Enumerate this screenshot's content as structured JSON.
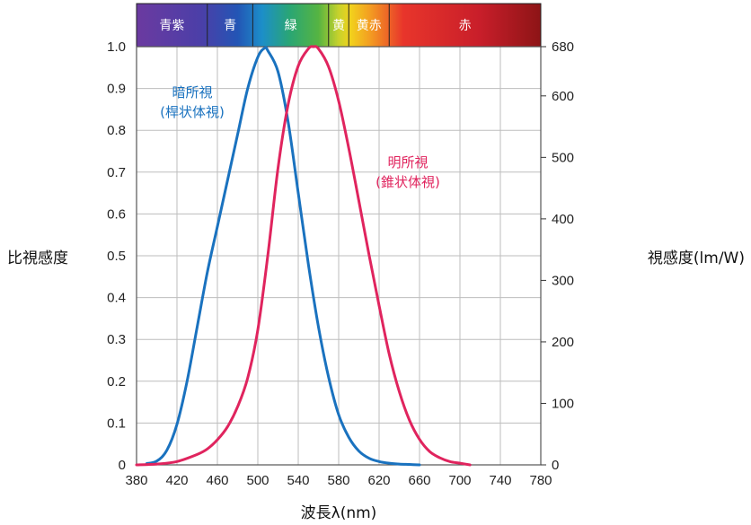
{
  "chart_data": {
    "type": "line",
    "title": "",
    "xlabel": "波長λ(nm)",
    "ylabel_left": "比視感度",
    "ylabel_right": "視感度(lm/W)",
    "xlim": [
      380,
      780
    ],
    "x_ticks": [
      "380",
      "420",
      "460",
      "500",
      "540",
      "580",
      "620",
      "660",
      "700",
      "740",
      "780"
    ],
    "ylim": [
      0,
      1.0
    ],
    "y_ticks_left": [
      "0",
      "0.1",
      "0.2",
      "0.3",
      "0.4",
      "0.5",
      "0.6",
      "0.7",
      "0.8",
      "0.9",
      "1.0"
    ],
    "y2lim": [
      0,
      680
    ],
    "y_ticks_right": [
      "0",
      "100",
      "200",
      "300",
      "400",
      "500",
      "600",
      "680"
    ],
    "grid": true,
    "color_bands": [
      {
        "label": "青紫",
        "from": 380,
        "to": 450
      },
      {
        "label": "青",
        "from": 450,
        "to": 495
      },
      {
        "label": "緑",
        "from": 495,
        "to": 570
      },
      {
        "label": "黄",
        "from": 570,
        "to": 590
      },
      {
        "label": "黄赤",
        "from": 590,
        "to": 630
      },
      {
        "label": "赤",
        "from": 630,
        "to": 780
      }
    ],
    "series": [
      {
        "name": "暗所視",
        "sub": "(桿状体視)",
        "color": "#1a72bf",
        "x": [
          390,
          400,
          410,
          420,
          430,
          440,
          450,
          460,
          470,
          480,
          490,
          500,
          507,
          510,
          520,
          530,
          540,
          550,
          560,
          570,
          580,
          590,
          600,
          610,
          620,
          630,
          640,
          650,
          660
        ],
        "y": [
          0.003,
          0.009,
          0.035,
          0.097,
          0.2,
          0.33,
          0.46,
          0.57,
          0.68,
          0.79,
          0.9,
          0.975,
          0.997,
          0.99,
          0.94,
          0.82,
          0.65,
          0.48,
          0.33,
          0.21,
          0.12,
          0.066,
          0.033,
          0.016,
          0.008,
          0.004,
          0.002,
          0.001,
          0.0
        ]
      },
      {
        "name": "明所視",
        "sub": "(錐状体視)",
        "color": "#e0245e",
        "x": [
          380,
          400,
          420,
          440,
          450,
          460,
          470,
          480,
          490,
          500,
          510,
          520,
          530,
          540,
          550,
          555,
          560,
          570,
          580,
          590,
          600,
          610,
          620,
          630,
          640,
          650,
          660,
          670,
          680,
          690,
          700,
          710
        ],
        "y": [
          0.0,
          0.002,
          0.008,
          0.025,
          0.038,
          0.06,
          0.091,
          0.139,
          0.208,
          0.323,
          0.503,
          0.71,
          0.862,
          0.954,
          0.995,
          1.0,
          0.995,
          0.952,
          0.87,
          0.757,
          0.631,
          0.503,
          0.381,
          0.265,
          0.175,
          0.107,
          0.061,
          0.032,
          0.017,
          0.008,
          0.004,
          0.0
        ]
      }
    ]
  }
}
